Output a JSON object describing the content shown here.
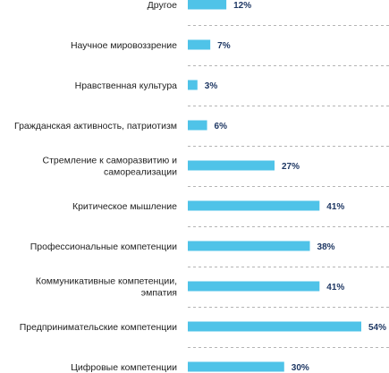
{
  "chart_data": {
    "type": "bar",
    "orientation": "horizontal",
    "categories": [
      "Другое",
      "Научное мировоззрение",
      "Нравственная культура",
      "Гражданская активность, патриотизм",
      "Стремление к саморазвитию и самореализации",
      "Критическое мышление",
      "Профессиональные компетенции",
      "Коммуникативные компетенции, эмпатия",
      "Предпринимательские компетенции",
      "Цифровые компетенции"
    ],
    "category_lines": [
      [
        "Другое"
      ],
      [
        "Научное мировоззрение"
      ],
      [
        "Нравственная культура"
      ],
      [
        "Гражданская активность, патриотизм"
      ],
      [
        "Стремление к саморазвитию и",
        "самореализации"
      ],
      [
        "Критическое мышление"
      ],
      [
        "Профессиональные компетенции"
      ],
      [
        "Коммуникативные компетенции,",
        "эмпатия"
      ],
      [
        "Предпринимательские компетенции"
      ],
      [
        "Цифровые компетенции"
      ]
    ],
    "values": [
      12,
      7,
      3,
      6,
      27,
      41,
      38,
      41,
      54,
      30
    ],
    "value_labels": [
      "12%",
      "7%",
      "3%",
      "6%",
      "27%",
      "41%",
      "38%",
      "41%",
      "54%",
      "30%"
    ],
    "unit": "%",
    "xlim": [
      0,
      54
    ],
    "grid": false,
    "legend": "none",
    "colors": {
      "bar": "#4fc3e8",
      "value_text": "#1f3864",
      "category_text": "#222222",
      "separator": "#b4b4b4"
    }
  }
}
